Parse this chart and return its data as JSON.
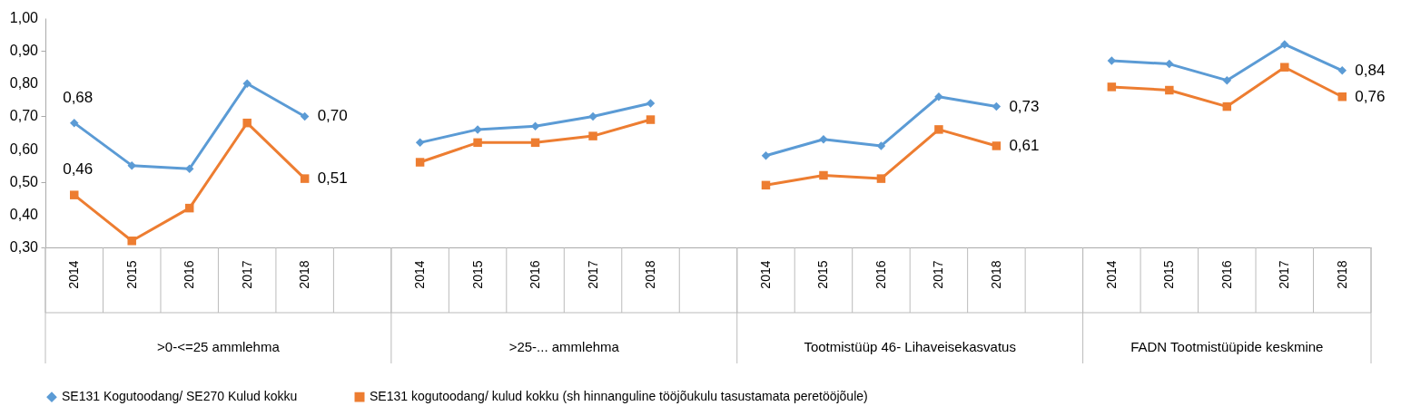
{
  "chart_data": {
    "type": "line",
    "categories": [
      "2014",
      "2015",
      "2016",
      "2017",
      "2018",
      null,
      "2014",
      "2015",
      "2016",
      "2017",
      "2018",
      null,
      "2014",
      "2015",
      "2016",
      "2017",
      "2018",
      null,
      "2014",
      "2015",
      "2016",
      "2017",
      "2018"
    ],
    "annotations": [
      ">0-<=25 ammlehma",
      ">25-... ammlehma",
      "Tootmistüüp  46- Lihaveisekasvatus",
      "FADN Tootmistüüpide keskmine"
    ],
    "series": [
      {
        "name": "SE131 Kogutoodang/ SE270 Kulud kokku",
        "color": "#5b9bd5",
        "marker": "diamond",
        "values": [
          0.68,
          0.55,
          0.54,
          0.8,
          0.7,
          null,
          0.62,
          0.66,
          0.67,
          0.7,
          0.74,
          null,
          0.58,
          0.63,
          0.61,
          0.76,
          0.73,
          null,
          0.87,
          0.86,
          0.81,
          0.92,
          0.84
        ],
        "value_labels": [
          "0,68",
          null,
          null,
          null,
          "0,70",
          null,
          null,
          null,
          null,
          null,
          null,
          null,
          null,
          null,
          null,
          null,
          "0,73",
          null,
          null,
          null,
          null,
          null,
          "0,84"
        ]
      },
      {
        "name": "SE131 kogutoodang/ kulud kokku (sh hinnanguline tööjõukulu tasustamata peretööjõule)",
        "color": "#ed7d31",
        "marker": "square",
        "values": [
          0.46,
          0.32,
          0.42,
          0.68,
          0.51,
          null,
          0.56,
          0.62,
          0.62,
          0.64,
          0.69,
          null,
          0.49,
          0.52,
          0.51,
          0.66,
          0.61,
          null,
          0.79,
          0.78,
          0.73,
          0.85,
          0.76
        ],
        "value_labels": [
          "0,46",
          null,
          null,
          null,
          "0,51",
          null,
          null,
          null,
          null,
          null,
          null,
          null,
          null,
          null,
          null,
          null,
          "0,61",
          null,
          null,
          null,
          null,
          null,
          "0,76"
        ]
      }
    ],
    "ylim": [
      0.3,
      1.0
    ],
    "yticks": [
      {
        "value": 0.3,
        "label": "0,30"
      },
      {
        "value": 0.4,
        "label": "0,40"
      },
      {
        "value": 0.5,
        "label": "0,50"
      },
      {
        "value": 0.6,
        "label": "0,60"
      },
      {
        "value": 0.7,
        "label": "0,70"
      },
      {
        "value": 0.8,
        "label": "0,80"
      },
      {
        "value": 0.9,
        "label": "0,90"
      },
      {
        "value": 1.0,
        "label": "1,00"
      }
    ],
    "grid": false,
    "legend": "bottom",
    "line_style": "solid"
  }
}
